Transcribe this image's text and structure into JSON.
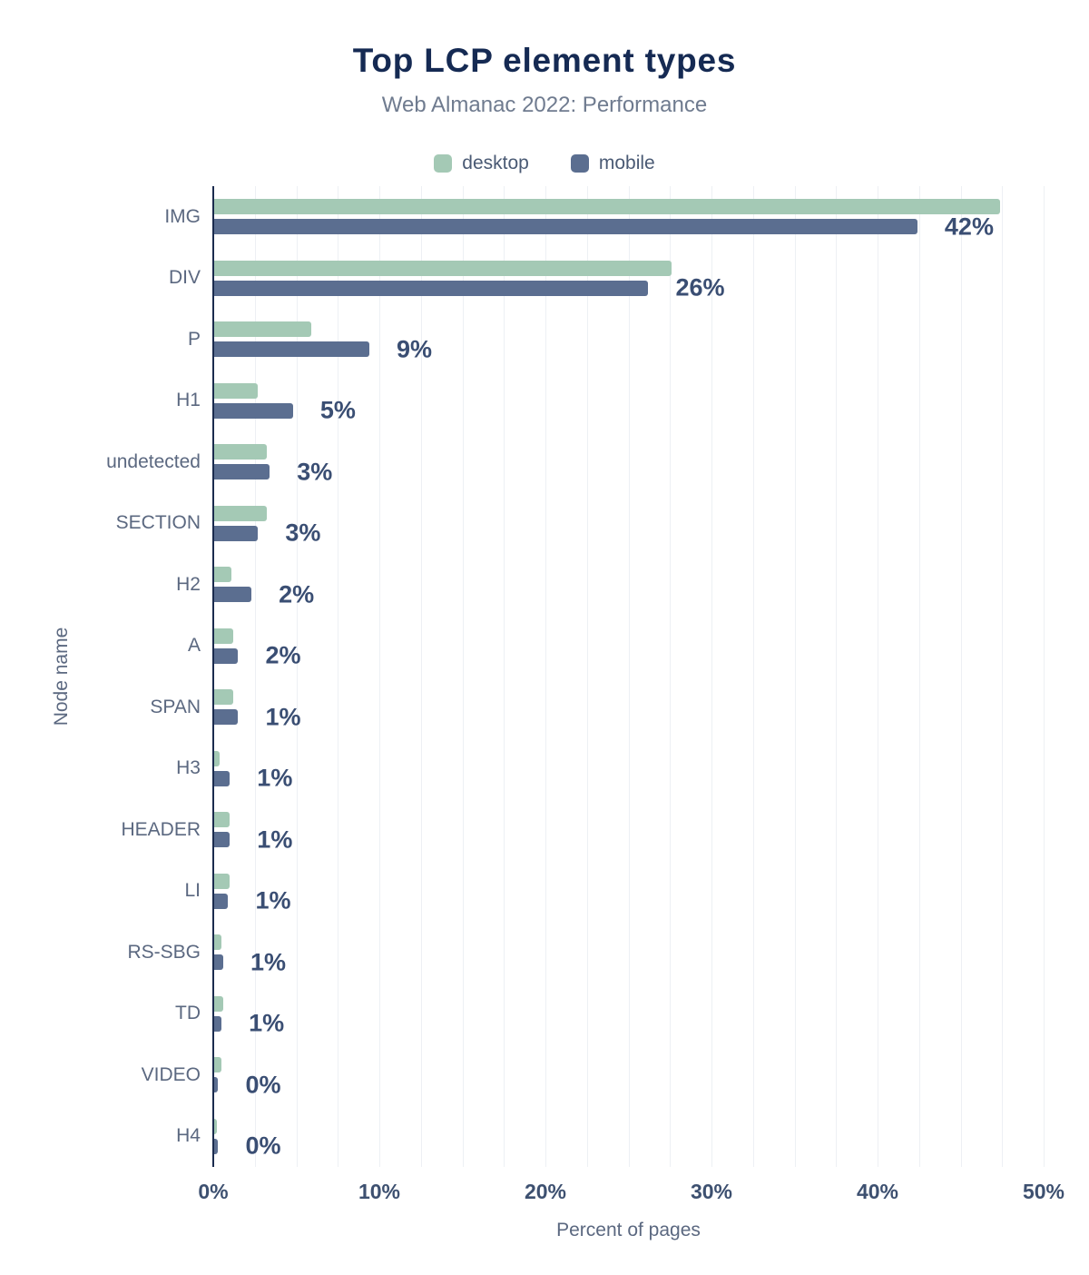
{
  "title": "Top LCP element types",
  "subtitle": "Web Almanac 2022: Performance",
  "legend": [
    {
      "label": "desktop",
      "color": "#a4c9b5"
    },
    {
      "label": "mobile",
      "color": "#5b6e90"
    }
  ],
  "chart_data": {
    "type": "bar",
    "orientation": "horizontal",
    "title": "Top LCP element types",
    "subtitle": "Web Almanac 2022: Performance",
    "xlabel": "Percent of pages",
    "ylabel": "Node name",
    "xlim": [
      0,
      50
    ],
    "x_ticks": [
      "0%",
      "10%",
      "20%",
      "30%",
      "40%",
      "50%"
    ],
    "gridline_step": 2.5,
    "legend_position": "top",
    "categories": [
      "IMG",
      "DIV",
      "P",
      "H1",
      "undetected",
      "SECTION",
      "H2",
      "A",
      "SPAN",
      "H3",
      "HEADER",
      "LI",
      "RS-SBG",
      "TD",
      "VIDEO",
      "H4"
    ],
    "series": [
      {
        "name": "desktop",
        "color": "#a4c9b5",
        "values": [
          47.4,
          27.6,
          5.9,
          2.7,
          3.2,
          3.2,
          1.1,
          1.2,
          1.2,
          0.4,
          1.0,
          1.0,
          0.5,
          0.6,
          0.5,
          0.2
        ]
      },
      {
        "name": "mobile",
        "color": "#5b6e90",
        "values": [
          42.4,
          26.2,
          9.4,
          4.8,
          3.4,
          2.7,
          2.3,
          1.5,
          1.5,
          1.0,
          1.0,
          0.9,
          0.6,
          0.5,
          0.3,
          0.3
        ]
      }
    ],
    "value_labels": [
      "42%",
      "26%",
      "9%",
      "5%",
      "3%",
      "3%",
      "2%",
      "2%",
      "1%",
      "1%",
      "1%",
      "1%",
      "1%",
      "1%",
      "0%",
      "0%"
    ]
  }
}
